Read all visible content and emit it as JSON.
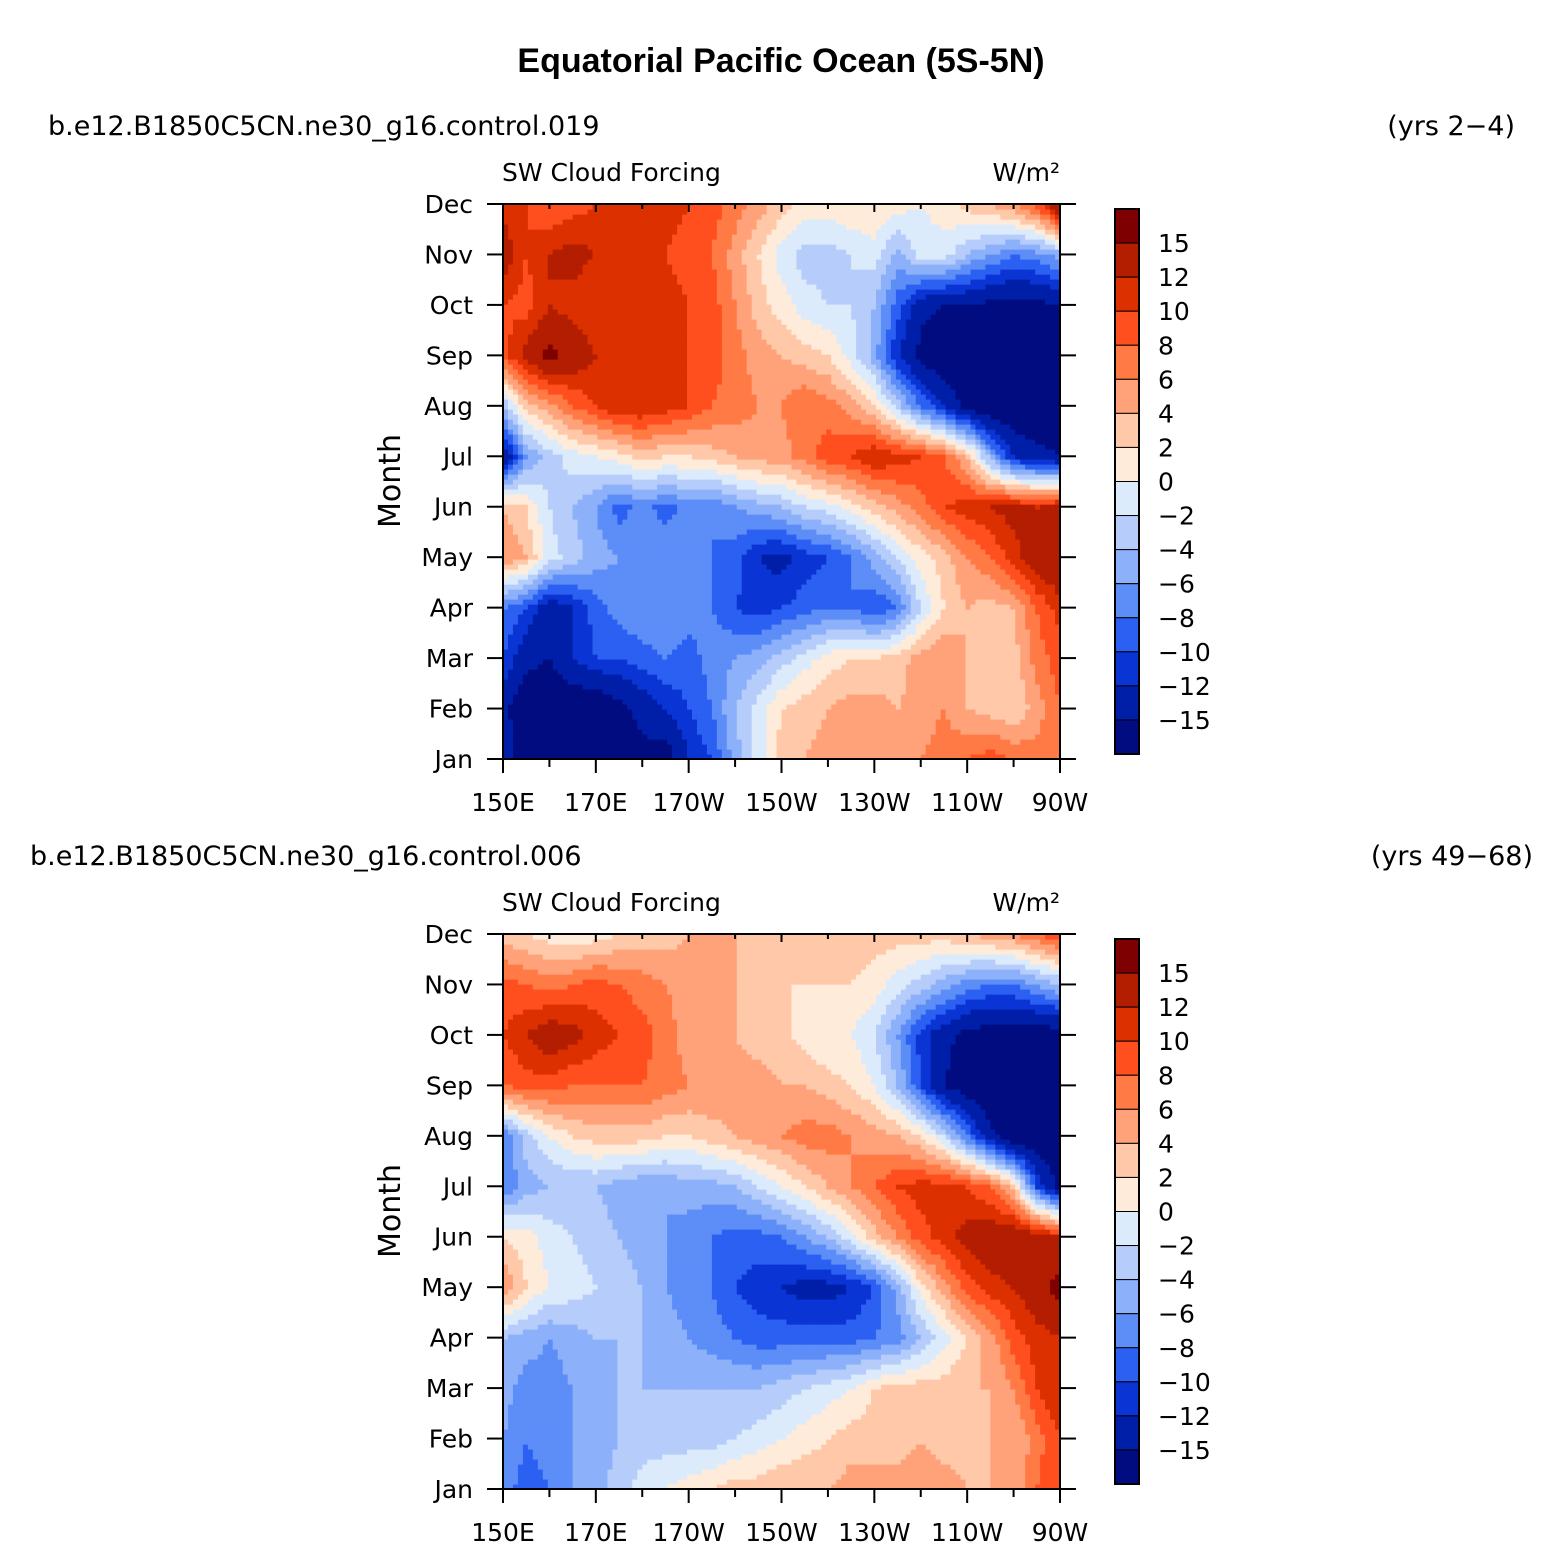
{
  "title": "Equatorial Pacific Ocean (5S-5N)",
  "panels": [
    {
      "case_name": "b.e12.B1850C5CN.ne30_g16.control.019",
      "years": "(yrs 2−4)",
      "variable": "SW Cloud Forcing",
      "units": "W/m²"
    },
    {
      "case_name": "b.e12.B1850C5CN.ne30_g16.control.006",
      "years": "(yrs 49−68)",
      "variable": "SW Cloud Forcing",
      "units": "W/m²"
    }
  ],
  "colorbar": {
    "labels": [
      "15",
      "12",
      "10",
      "8",
      "6",
      "4",
      "2",
      "0",
      "−2",
      "−4",
      "−6",
      "−8",
      "−10",
      "−12",
      "−15"
    ],
    "colors": [
      "#7f0000",
      "#b31d00",
      "#dc3000",
      "#ff4f1f",
      "#ff7a45",
      "#ffa27a",
      "#ffc8a8",
      "#ffebd9",
      "#dcebfc",
      "#b6cdfb",
      "#8cb0fa",
      "#5d8df7",
      "#2b60f2",
      "#0a35d4",
      "#001fa8",
      "#000c80"
    ]
  },
  "chart_data": [
    {
      "type": "heatmap",
      "title": "SW Cloud Forcing",
      "ylabel": "Month",
      "xlabel": "",
      "x_ticks": [
        "150E",
        "170E",
        "170W",
        "150W",
        "130W",
        "110W",
        "90W"
      ],
      "y_ticks": [
        "Jan",
        "Feb",
        "Mar",
        "Apr",
        "May",
        "Jun",
        "Jul",
        "Aug",
        "Sep",
        "Oct",
        "Nov",
        "Dec"
      ],
      "x_lon": [
        150,
        155,
        160,
        165,
        170,
        175,
        180,
        185,
        190,
        195,
        200,
        205,
        210,
        215,
        220,
        225,
        230,
        235,
        240,
        245,
        250,
        255,
        260,
        265,
        270
      ],
      "x_range": [
        150,
        270
      ],
      "y_range": [
        "Jan",
        "Dec"
      ],
      "levels": [
        -15,
        -12,
        -10,
        -8,
        -6,
        -4,
        -2,
        0,
        2,
        4,
        6,
        8,
        10,
        12,
        15
      ],
      "values": [
        [
          -12,
          -18,
          -18,
          -18,
          -18,
          -18,
          -16,
          -17,
          -12,
          -10,
          -5,
          -1,
          3,
          4,
          5,
          5,
          6,
          6,
          6,
          7,
          8,
          9,
          8,
          7,
          8
        ],
        [
          -14,
          -18,
          -18,
          -18,
          -18,
          -16,
          -14,
          -12,
          -10,
          -8,
          -4,
          -1,
          2,
          3,
          4,
          5,
          5,
          4,
          5,
          6,
          4,
          3,
          2,
          5,
          8
        ],
        [
          -10,
          -14,
          -15,
          -12,
          -10,
          -10,
          -9,
          -8,
          -9,
          -7,
          -6,
          -5,
          -3,
          -1,
          1,
          2,
          2,
          3,
          5,
          6,
          4,
          3,
          3,
          7,
          9
        ],
        [
          -8,
          -10,
          -14,
          -12,
          -9,
          -7,
          -6,
          -6,
          -7,
          -8,
          -10,
          -11,
          -10,
          -9,
          -8,
          -8,
          -10,
          -8,
          -2,
          2,
          4,
          3,
          4,
          8,
          11
        ],
        [
          6,
          4,
          -1,
          -3,
          -5,
          -6,
          -7,
          -6,
          -6,
          -8,
          -9,
          -12,
          -13,
          -11,
          -10,
          -8,
          -5,
          -2,
          1,
          3,
          6,
          8,
          11,
          14,
          15
        ],
        [
          4,
          2,
          -2,
          -4,
          -6,
          -9,
          -7,
          -9,
          -7,
          -8,
          -6,
          -5,
          -4,
          -2,
          -1,
          1,
          3,
          5,
          7,
          10,
          11,
          12,
          13,
          12,
          13
        ],
        [
          -15,
          -6,
          -3,
          -1,
          0,
          1,
          3,
          2,
          2,
          3,
          4,
          5,
          5,
          7,
          9,
          10,
          12,
          11,
          10,
          8,
          4,
          -5,
          -12,
          -14,
          -15
        ],
        [
          -4,
          3,
          5,
          8,
          10,
          12,
          12,
          11,
          10,
          8,
          7,
          6,
          6,
          8,
          7,
          5,
          2,
          -3,
          -8,
          -12,
          -16,
          -18,
          -18,
          -18,
          -18
        ],
        [
          9,
          13,
          16,
          14,
          12,
          12,
          11,
          11,
          10,
          9,
          7,
          5,
          4,
          3,
          2,
          -1,
          -5,
          -12,
          -16,
          -18,
          -18,
          -18,
          -18,
          -18,
          -18
        ],
        [
          10,
          9,
          12,
          11,
          10,
          11,
          12,
          11,
          10,
          9,
          6,
          3,
          1,
          -1,
          -2,
          -2,
          -4,
          -9,
          -14,
          -15,
          -15,
          -16,
          -16,
          -16,
          -15
        ],
        [
          14,
          10,
          12,
          13,
          12,
          12,
          11,
          10,
          9,
          8,
          5,
          2,
          -1,
          -3,
          -3,
          -2,
          -1,
          -5,
          -1,
          -1,
          -4,
          -6,
          -8,
          -7,
          -5
        ],
        [
          11,
          10,
          8,
          9,
          10,
          11,
          12,
          11,
          10,
          9,
          7,
          5,
          3,
          1,
          1,
          2,
          2,
          1,
          0,
          1,
          3,
          4,
          6,
          9,
          16
        ]
      ]
    },
    {
      "type": "heatmap",
      "title": "SW Cloud Forcing",
      "ylabel": "Month",
      "xlabel": "",
      "x_ticks": [
        "150E",
        "170E",
        "170W",
        "150W",
        "130W",
        "110W",
        "90W"
      ],
      "y_ticks": [
        "Jan",
        "Feb",
        "Mar",
        "Apr",
        "May",
        "Jun",
        "Jul",
        "Aug",
        "Sep",
        "Oct",
        "Nov",
        "Dec"
      ],
      "x_lon": [
        150,
        155,
        160,
        165,
        170,
        175,
        180,
        185,
        190,
        195,
        200,
        205,
        210,
        215,
        220,
        225,
        230,
        235,
        240,
        245,
        250,
        255,
        260,
        265,
        270
      ],
      "x_range": [
        150,
        270
      ],
      "y_range": [
        "Jan",
        "Dec"
      ],
      "levels": [
        -15,
        -12,
        -10,
        -8,
        -6,
        -4,
        -2,
        0,
        2,
        4,
        6,
        8,
        10,
        12,
        15
      ],
      "values": [
        [
          -7,
          -9,
          -8,
          -6,
          -5,
          -3,
          -1,
          0,
          1,
          2,
          3,
          3,
          4,
          4,
          4,
          5,
          5,
          5,
          5,
          5,
          4,
          4,
          4,
          8,
          10
        ],
        [
          -6,
          -8,
          -7,
          -6,
          -5,
          -4,
          -3,
          -3,
          -3,
          -3,
          -2,
          -1,
          0,
          1,
          2,
          3,
          3,
          3,
          4,
          3,
          3,
          4,
          4,
          7,
          10
        ],
        [
          -5,
          -7,
          -7,
          -6,
          -5,
          -4,
          -4,
          -4,
          -4,
          -4,
          -4,
          -4,
          -3,
          -2,
          -1,
          0,
          2,
          3,
          3,
          3,
          4,
          4,
          6,
          10,
          12
        ],
        [
          -4,
          -5,
          -6,
          -5,
          -4,
          -4,
          -4,
          -5,
          -6,
          -7,
          -8,
          -9,
          -9,
          -9,
          -9,
          -9,
          -8,
          -7,
          -4,
          -1,
          2,
          5,
          9,
          11,
          12
        ],
        [
          6,
          2,
          0,
          -1,
          -2,
          -3,
          -4,
          -6,
          -7,
          -8,
          -10,
          -11,
          -12,
          -13,
          -13,
          -12,
          -10,
          -5,
          1,
          5,
          9,
          11,
          12,
          14,
          16
        ],
        [
          2,
          1,
          -1,
          -2,
          -3,
          -4,
          -5,
          -6,
          -7,
          -8,
          -9,
          -9,
          -8,
          -6,
          -4,
          -1,
          3,
          6,
          9,
          11,
          13,
          14,
          15,
          14,
          12
        ],
        [
          -8,
          -5,
          -4,
          -4,
          -4,
          -5,
          -6,
          -6,
          -5,
          -5,
          -4,
          -2,
          0,
          2,
          4,
          6,
          8,
          10,
          11,
          11,
          10,
          8,
          3,
          -10,
          -16
        ],
        [
          -8,
          -3,
          0,
          2,
          3,
          3,
          3,
          2,
          2,
          3,
          4,
          5,
          6,
          7,
          7,
          6,
          5,
          4,
          2,
          -2,
          -8,
          -14,
          -18,
          -18,
          -18
        ],
        [
          8,
          9,
          9,
          8,
          8,
          8,
          8,
          7,
          6,
          6,
          5,
          5,
          4,
          4,
          3,
          2,
          0,
          -4,
          -10,
          -15,
          -17,
          -18,
          -18,
          -18,
          -18
        ],
        [
          10,
          12,
          14,
          13,
          11,
          10,
          9,
          7,
          5,
          4,
          4,
          3,
          3,
          1,
          0,
          0,
          -2,
          -6,
          -11,
          -14,
          -16,
          -17,
          -17,
          -17,
          -17
        ],
        [
          9,
          8,
          7,
          8,
          9,
          8,
          7,
          6,
          5,
          4,
          4,
          3,
          2,
          2,
          2,
          2,
          1,
          -1,
          -3,
          -5,
          -7,
          -8,
          -8,
          -6,
          -4
        ],
        [
          3,
          2,
          1,
          0,
          1,
          2,
          3,
          3,
          4,
          5,
          4,
          3,
          3,
          3,
          3,
          3,
          3,
          3,
          3,
          3,
          4,
          5,
          6,
          8,
          10
        ]
      ]
    }
  ]
}
